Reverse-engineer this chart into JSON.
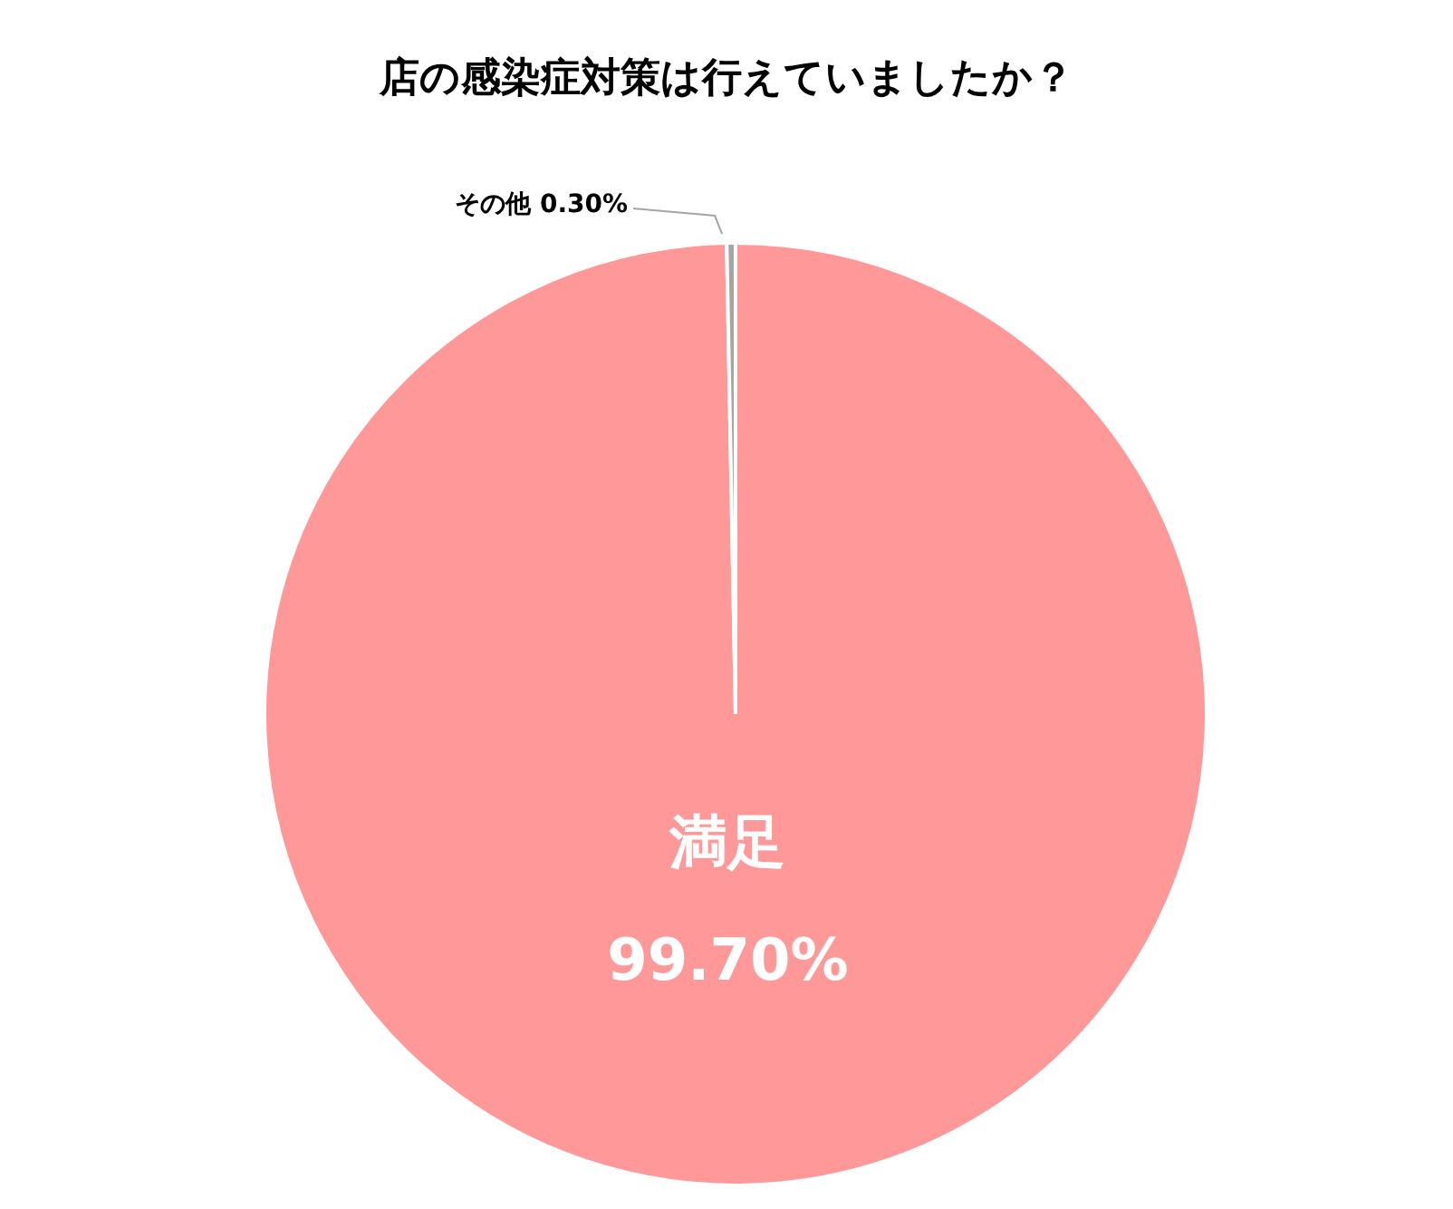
{
  "chart_data": {
    "type": "pie",
    "title": "店の感染症対策は行えていましたか？",
    "categories": [
      "満足",
      "その他"
    ],
    "values": [
      99.7,
      0.3
    ],
    "colors": [
      "#ff9999",
      "#a5a5a5"
    ],
    "value_labels": [
      "99.70%",
      "0.30%"
    ],
    "legend": false
  }
}
